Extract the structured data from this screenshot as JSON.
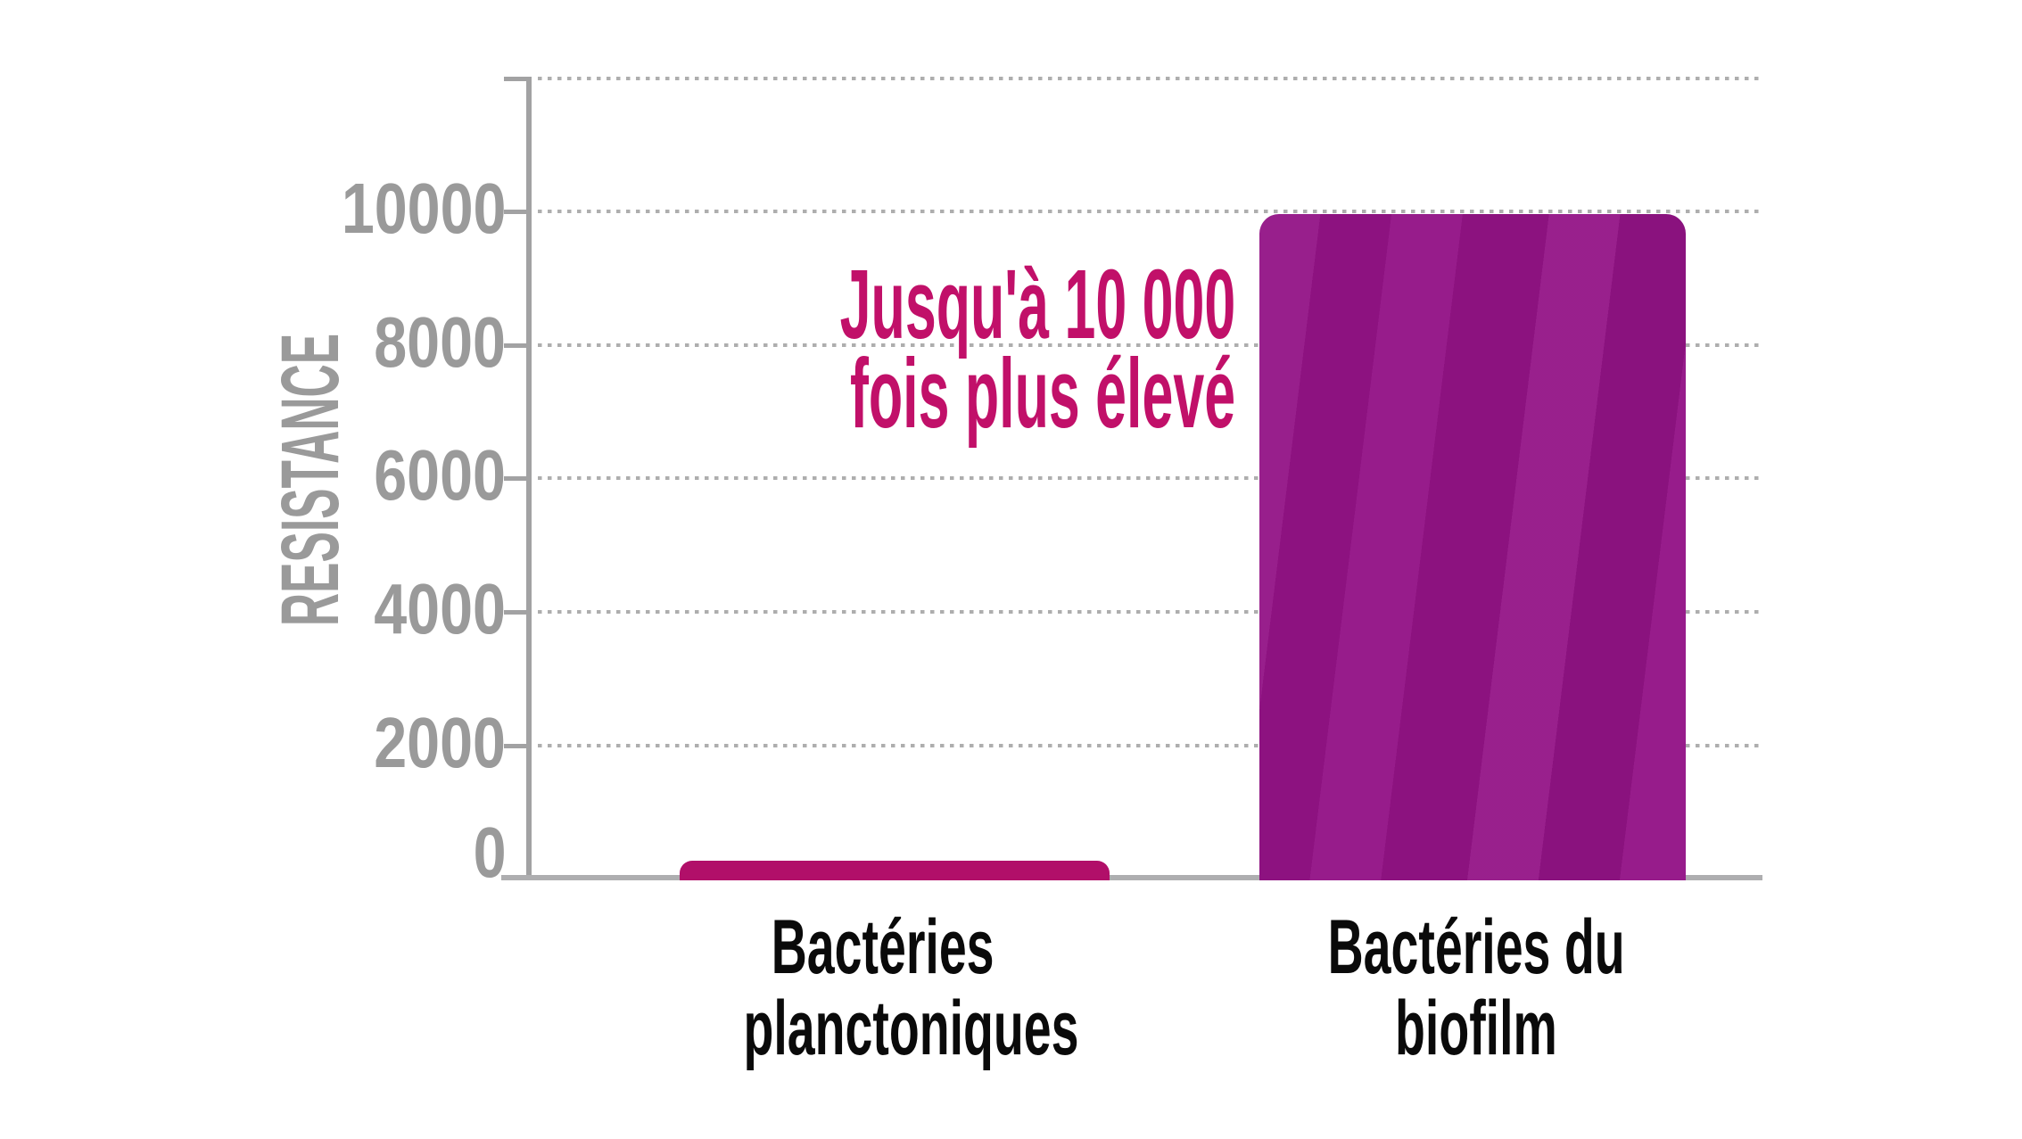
{
  "chart_data": {
    "type": "bar",
    "categories": [
      "Bactéries planctoniques",
      "Bactéries du biofilm"
    ],
    "values": [
      300,
      10000
    ],
    "title": "",
    "xlabel": "",
    "ylabel": "RESISTANCE",
    "ylim": [
      0,
      12000
    ],
    "yticks": [
      0,
      2000,
      4000,
      6000,
      8000,
      10000
    ],
    "grid": "horizontal dotted lines every 2000, top border dotted at 12000",
    "legend": "none",
    "annotation": "Jusqu'à 10 000 fois plus élevé",
    "bar_colors": [
      "#b10f69",
      "#931386"
    ]
  },
  "yaxis": {
    "title": "RESISTANCE",
    "ticks": [
      "10000",
      "8000",
      "6000",
      "4000",
      "2000",
      "0"
    ]
  },
  "annotation": {
    "line1": "Jusqu'à 10 000",
    "line2": "fois plus élevé",
    "color": "#c11069"
  },
  "bars": [
    {
      "label_line1": "Bactéries",
      "label_line2": "planctoniques",
      "value": 300,
      "color": "#b10f69"
    },
    {
      "label_line1": "Bactéries du",
      "label_line2": "biofilm",
      "value": 10000,
      "color": "#931386"
    }
  ],
  "colors": {
    "axis": "#a2a2a3",
    "baseline": "#aeaeb0",
    "gridline": "#aeaeae",
    "tick_label": "#9a9a9a",
    "x_label": "#0a0a0a",
    "annotation_text": "#c11069",
    "bar_small": "#b10f69",
    "bar_big": "#931386",
    "background": "#ffffff"
  }
}
